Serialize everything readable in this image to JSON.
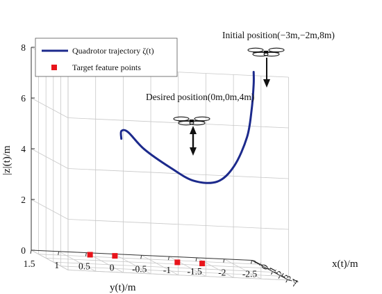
{
  "chart_data": {
    "type": "line3d",
    "title": "",
    "xlabel": "x(t)/m",
    "ylabel": "y(t)/m",
    "zlabel": "|z|(t)/m",
    "xlim": [
      -4,
      1
    ],
    "ylim": [
      -2.5,
      1.5
    ],
    "zlim": [
      0,
      8
    ],
    "x_ticks": [
      "1",
      "0",
      "-1",
      "-2",
      "-3",
      "-4"
    ],
    "y_ticks": [
      "1.5",
      "1",
      "0.5",
      "0",
      "-0.5",
      "-1",
      "-1.5",
      "-2",
      "-2.5"
    ],
    "z_ticks": [
      "0",
      "2",
      "4",
      "6",
      "8"
    ],
    "grid": true,
    "legend_position": "top-left",
    "series": [
      {
        "name": "Quadrotor trajectory ζ(t)",
        "type": "line",
        "color": "#1c2a8c",
        "points": [
          {
            "x": -3.0,
            "y": -2.0,
            "z": 8.0
          },
          {
            "x": -3.0,
            "y": -2.0,
            "z": 7.5
          },
          {
            "x": -2.95,
            "y": -1.97,
            "z": 6.5
          },
          {
            "x": -2.85,
            "y": -1.9,
            "z": 5.4
          },
          {
            "x": -2.6,
            "y": -1.7,
            "z": 4.2
          },
          {
            "x": -2.2,
            "y": -1.45,
            "z": 3.5
          },
          {
            "x": -1.6,
            "y": -1.1,
            "z": 3.4
          },
          {
            "x": -1.0,
            "y": -0.75,
            "z": 3.8
          },
          {
            "x": -0.5,
            "y": -0.35,
            "z": 4.4
          },
          {
            "x": -0.15,
            "y": -0.1,
            "z": 5.0
          },
          {
            "x": 0.0,
            "y": 0.0,
            "z": 5.0
          },
          {
            "x": 0.0,
            "y": 0.0,
            "z": 4.7
          }
        ]
      },
      {
        "name": "Target feature points",
        "type": "scatter",
        "color": "#e8141b",
        "points": [
          {
            "x": 0.5,
            "y": 0.5,
            "z": 0
          },
          {
            "x": 0.5,
            "y": 0.05,
            "z": 0
          },
          {
            "x": -0.5,
            "y": -0.95,
            "z": 0
          },
          {
            "x": -0.5,
            "y": -1.4,
            "z": 0
          }
        ]
      }
    ],
    "annotations": [
      {
        "text": "Initial position(−3m,−2m,8m)"
      },
      {
        "text": "Desired position(0m,0m,4m)"
      }
    ]
  }
}
